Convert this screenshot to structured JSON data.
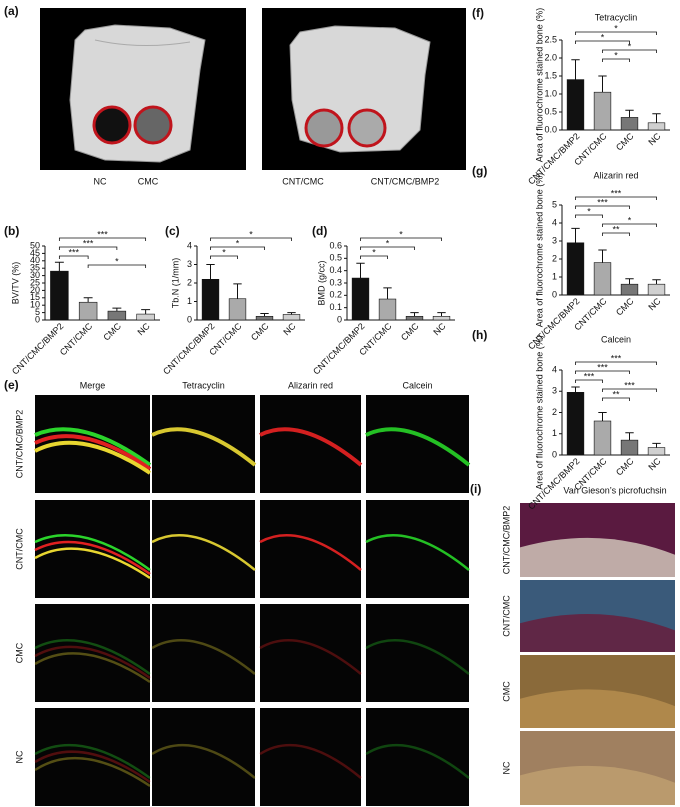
{
  "panel_a": {
    "label": "(a)",
    "captions": [
      "NC",
      "CMC",
      "CNT/CMC",
      "CNT/CMC/BMP2"
    ]
  },
  "chart_data": [
    {
      "label": "(b)",
      "type": "bar",
      "ylabel": "BV/TV (%)",
      "categories": [
        "CNT/CMC/BMP2",
        "CNT/CMC",
        "CMC",
        "NC"
      ],
      "values": [
        33,
        12,
        6,
        4
      ],
      "errors": [
        6,
        3,
        2,
        3
      ],
      "colors": [
        "#111111",
        "#aaaaaa",
        "#777777",
        "#d0d0d0"
      ],
      "ylim": [
        0,
        50
      ],
      "yticks": [
        0,
        5,
        10,
        15,
        20,
        25,
        30,
        35,
        40,
        45,
        50
      ],
      "significance": [
        {
          "pair": [
            0,
            3
          ],
          "label": "***"
        },
        {
          "pair": [
            0,
            2
          ],
          "label": "***"
        },
        {
          "pair": [
            0,
            1
          ],
          "label": "***"
        },
        {
          "pair": [
            1,
            3
          ],
          "label": "*"
        }
      ]
    },
    {
      "label": "(c)",
      "type": "bar",
      "ylabel": "Tb.N (1/mm)",
      "categories": [
        "CNT/CMC/BMP2",
        "CNT/CMC",
        "CMC",
        "NC"
      ],
      "values": [
        2.2,
        1.15,
        0.2,
        0.3
      ],
      "errors": [
        0.8,
        0.8,
        0.15,
        0.1
      ],
      "colors": [
        "#111111",
        "#aaaaaa",
        "#777777",
        "#d0d0d0"
      ],
      "ylim": [
        0,
        4
      ],
      "yticks": [
        0,
        1,
        2,
        3,
        4
      ],
      "significance": [
        {
          "pair": [
            0,
            3
          ],
          "label": "*"
        },
        {
          "pair": [
            0,
            2
          ],
          "label": "*"
        },
        {
          "pair": [
            0,
            1
          ],
          "label": "*"
        }
      ]
    },
    {
      "label": "(d)",
      "type": "bar",
      "ylabel": "BMD (g/cc)",
      "categories": [
        "CNT/CMC/BMP2",
        "CNT/CMC",
        "CMC",
        "NC"
      ],
      "values": [
        0.34,
        0.17,
        0.03,
        0.03
      ],
      "errors": [
        0.12,
        0.09,
        0.03,
        0.03
      ],
      "colors": [
        "#111111",
        "#aaaaaa",
        "#777777",
        "#d0d0d0"
      ],
      "ylim": [
        0,
        0.6
      ],
      "yticks": [
        0,
        0.1,
        0.2,
        0.3,
        0.4,
        0.5,
        0.6
      ],
      "significance": [
        {
          "pair": [
            0,
            3
          ],
          "label": "*"
        },
        {
          "pair": [
            0,
            2
          ],
          "label": "*"
        },
        {
          "pair": [
            0,
            1
          ],
          "label": "*"
        }
      ]
    },
    {
      "label": "(f)",
      "type": "bar",
      "title": "Tetracyclin",
      "ylabel": "Area of fluorochrome stained bone (%)",
      "categories": [
        "CNT/CMC/BMP2",
        "CNT/CMC",
        "CMC",
        "NC"
      ],
      "values": [
        1.4,
        1.05,
        0.35,
        0.2
      ],
      "errors": [
        0.55,
        0.45,
        0.2,
        0.25
      ],
      "colors": [
        "#111111",
        "#aaaaaa",
        "#777777",
        "#d0d0d0"
      ],
      "ylim": [
        0,
        2.5
      ],
      "yticks": [
        {
          "value": 0,
          "label": "0.0"
        },
        0.5,
        {
          "value": 1,
          "label": "1.0"
        },
        1.5,
        {
          "value": 2,
          "label": "2.0"
        },
        2.5
      ],
      "significance": [
        {
          "pair": [
            0,
            3
          ],
          "label": "*"
        },
        {
          "pair": [
            0,
            2
          ],
          "label": "*"
        },
        {
          "pair": [
            1,
            3
          ],
          "label": "*"
        },
        {
          "pair": [
            1,
            2
          ],
          "label": "*"
        }
      ]
    },
    {
      "label": "(g)",
      "type": "bar",
      "title": "Alizarin red",
      "ylabel": "Area of fluorochrome stained bone (%)",
      "categories": [
        "CNT/CMC/BMP2",
        "CNT/CMC",
        "CMC",
        "NC"
      ],
      "values": [
        2.9,
        1.8,
        0.6,
        0.6
      ],
      "errors": [
        0.8,
        0.7,
        0.3,
        0.25
      ],
      "colors": [
        "#111111",
        "#aaaaaa",
        "#777777",
        "#d0d0d0"
      ],
      "ylim": [
        0,
        5
      ],
      "yticks": [
        0,
        1,
        2,
        3,
        4,
        5
      ],
      "significance": [
        {
          "pair": [
            0,
            3
          ],
          "label": "***"
        },
        {
          "pair": [
            0,
            2
          ],
          "label": "***"
        },
        {
          "pair": [
            0,
            1
          ],
          "label": "*"
        },
        {
          "pair": [
            1,
            3
          ],
          "label": "*"
        },
        {
          "pair": [
            1,
            2
          ],
          "label": "**"
        }
      ]
    },
    {
      "label": "(h)",
      "type": "bar",
      "title": "Calcein",
      "ylabel": "Area of fluorochrome stained bone (%)",
      "categories": [
        "CNT/CMC/BMP2",
        "CNT/CMC",
        "CMC",
        "NC"
      ],
      "values": [
        2.95,
        1.6,
        0.7,
        0.35
      ],
      "errors": [
        0.25,
        0.4,
        0.35,
        0.2
      ],
      "colors": [
        "#111111",
        "#aaaaaa",
        "#777777",
        "#d0d0d0"
      ],
      "ylim": [
        0,
        4
      ],
      "yticks": [
        0,
        1,
        2,
        3,
        4
      ],
      "significance": [
        {
          "pair": [
            0,
            3
          ],
          "label": "***"
        },
        {
          "pair": [
            0,
            2
          ],
          "label": "***"
        },
        {
          "pair": [
            0,
            1
          ],
          "label": "***"
        },
        {
          "pair": [
            1,
            3
          ],
          "label": "***"
        },
        {
          "pair": [
            1,
            2
          ],
          "label": "**"
        }
      ]
    }
  ],
  "panel_e": {
    "label": "(e)",
    "columns": [
      "Merge",
      "Tetracyclin",
      "Alizarin red",
      "Calcein"
    ],
    "rows": [
      "CNT/CMC/BMP2",
      "CNT/CMC",
      "CMC",
      "NC"
    ]
  },
  "panel_i": {
    "label": "(i)",
    "title": "Van Gieson’s picrofuchsin",
    "rows": [
      "CNT/CMC/BMP2",
      "CNT/CMC",
      "CMC",
      "NC"
    ]
  }
}
